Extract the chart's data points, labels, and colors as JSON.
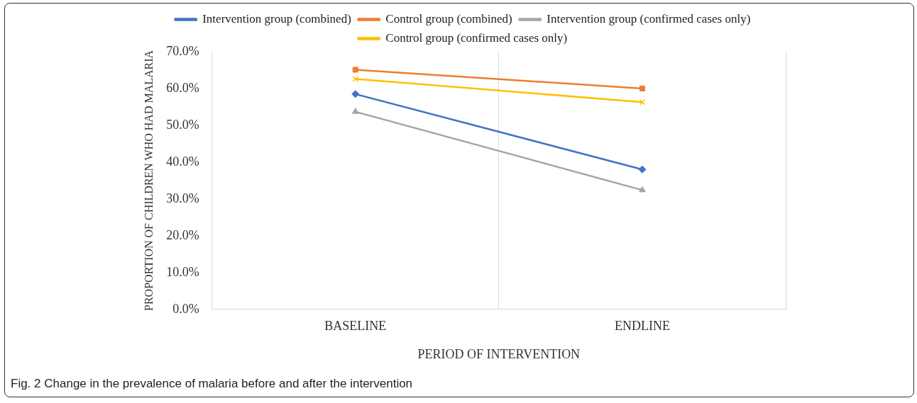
{
  "chart_data": {
    "type": "line",
    "xlabel": "PERIOD OF INTERVENTION",
    "ylabel": "PROPORTION OF CHILDREN WHO HAD MALARIA",
    "categories": [
      "BASELINE",
      "ENDLINE"
    ],
    "series": [
      {
        "name": "Intervention group (combined)",
        "color": "#4472c4",
        "marker": "diamond",
        "values": [
          58.5,
          38.0
        ]
      },
      {
        "name": "Control group (combined)",
        "color": "#ed7d31",
        "marker": "square",
        "values": [
          65.1,
          60.0
        ]
      },
      {
        "name": "Intervention group (confirmed cases only)",
        "color": "#a5a5a5",
        "marker": "triangle",
        "values": [
          53.7,
          32.4
        ]
      },
      {
        "name": "Control group (confirmed cases only)",
        "color": "#ffc000",
        "marker": "cross",
        "values": [
          62.6,
          56.3
        ]
      }
    ],
    "ylim": [
      0,
      70
    ],
    "yticks": [
      {
        "value": 0,
        "label": "0.0%"
      },
      {
        "value": 10,
        "label": "10.0%"
      },
      {
        "value": 20,
        "label": "20.0%"
      },
      {
        "value": 30,
        "label": "30.0%"
      },
      {
        "value": 40,
        "label": "40.0%"
      },
      {
        "value": 50,
        "label": "50.0%"
      },
      {
        "value": 60,
        "label": "60.0%"
      },
      {
        "value": 70,
        "label": "70.0%"
      }
    ],
    "grid": "x",
    "legend": "top",
    "line_style": "solid",
    "annotations": [
      "Fig. 2 Change in the prevalence of malaria before and after the intervention"
    ]
  }
}
